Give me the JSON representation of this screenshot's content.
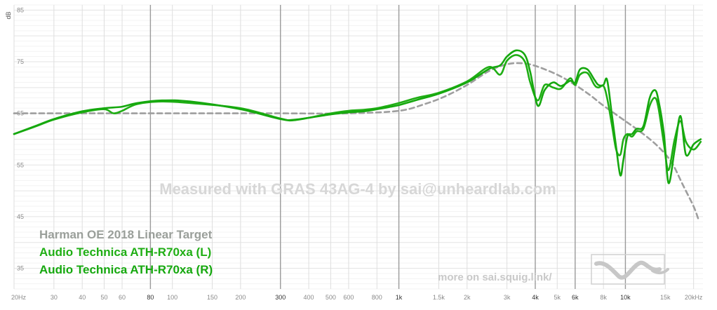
{
  "chart_data": {
    "type": "line",
    "title": "",
    "xlabel": "",
    "ylabel": "dB",
    "xscale": "log",
    "xlim": [
      20,
      22000
    ],
    "ylim": [
      31,
      86
    ],
    "grid": true,
    "y_ticks": [
      "85",
      "75",
      "65",
      "55",
      "45",
      "35"
    ],
    "x_ticks": [
      {
        "f": 20,
        "label": "20Hz",
        "major": false
      },
      {
        "f": 30,
        "label": "30",
        "major": false
      },
      {
        "f": 40,
        "label": "40",
        "major": false
      },
      {
        "f": 50,
        "label": "50",
        "major": false
      },
      {
        "f": 60,
        "label": "60",
        "major": false
      },
      {
        "f": 80,
        "label": "80",
        "major": true
      },
      {
        "f": 100,
        "label": "100",
        "major": false
      },
      {
        "f": 150,
        "label": "150",
        "major": false
      },
      {
        "f": 200,
        "label": "200",
        "major": false
      },
      {
        "f": 300,
        "label": "300",
        "major": true
      },
      {
        "f": 400,
        "label": "400",
        "major": false
      },
      {
        "f": 500,
        "label": "500",
        "major": false
      },
      {
        "f": 600,
        "label": "600",
        "major": false
      },
      {
        "f": 800,
        "label": "800",
        "major": false
      },
      {
        "f": 1000,
        "label": "1k",
        "major": true
      },
      {
        "f": 1500,
        "label": "1.5k",
        "major": false
      },
      {
        "f": 2000,
        "label": "2k",
        "major": false
      },
      {
        "f": 3000,
        "label": "3k",
        "major": false
      },
      {
        "f": 4000,
        "label": "4k",
        "major": true
      },
      {
        "f": 5000,
        "label": "5k",
        "major": false
      },
      {
        "f": 6000,
        "label": "6k",
        "major": true
      },
      {
        "f": 8000,
        "label": "8k",
        "major": false
      },
      {
        "f": 10000,
        "label": "10k",
        "major": true
      },
      {
        "f": 15000,
        "label": "15k",
        "major": false
      },
      {
        "f": 20000,
        "label": "20kHz",
        "major": false
      }
    ],
    "series": [
      {
        "name": "Harman OE 2018 Linear Target",
        "color": "#9e9e9e",
        "dashed": true,
        "points": [
          [
            20,
            65
          ],
          [
            40,
            65
          ],
          [
            80,
            65
          ],
          [
            150,
            65
          ],
          [
            300,
            65
          ],
          [
            600,
            65
          ],
          [
            1000,
            65.5
          ],
          [
            1300,
            66.8
          ],
          [
            1600,
            68.3
          ],
          [
            2000,
            70.5
          ],
          [
            2500,
            73.2
          ],
          [
            3000,
            74.5
          ],
          [
            3500,
            74.7
          ],
          [
            4000,
            74.2
          ],
          [
            5000,
            72.5
          ],
          [
            6000,
            70.5
          ],
          [
            7000,
            68.5
          ],
          [
            8000,
            66.5
          ],
          [
            10000,
            63.5
          ],
          [
            12000,
            61
          ],
          [
            14000,
            58.5
          ],
          [
            16000,
            55.5
          ],
          [
            18000,
            51
          ],
          [
            20000,
            47
          ],
          [
            21000,
            44.5
          ]
        ]
      },
      {
        "name": "Audio Technica ATH-R70xa (L)",
        "color": "#1fae14",
        "dashed": false,
        "points": [
          [
            20,
            61
          ],
          [
            25,
            62.5
          ],
          [
            30,
            63.8
          ],
          [
            40,
            65.2
          ],
          [
            50,
            65.8
          ],
          [
            55,
            65
          ],
          [
            60,
            65.5
          ],
          [
            70,
            66.8
          ],
          [
            90,
            67.3
          ],
          [
            120,
            67
          ],
          [
            200,
            66
          ],
          [
            300,
            64
          ],
          [
            350,
            63.7
          ],
          [
            500,
            65
          ],
          [
            600,
            65.5
          ],
          [
            700,
            65.7
          ],
          [
            800,
            66
          ],
          [
            900,
            66.5
          ],
          [
            1000,
            67
          ],
          [
            1200,
            68
          ],
          [
            1500,
            69
          ],
          [
            2000,
            71.2
          ],
          [
            2500,
            74
          ],
          [
            2800,
            72.5
          ],
          [
            3000,
            75.2
          ],
          [
            3300,
            76.3
          ],
          [
            3600,
            75
          ],
          [
            3800,
            71
          ],
          [
            4100,
            67.5
          ],
          [
            4400,
            70.5
          ],
          [
            4800,
            70
          ],
          [
            5200,
            69.8
          ],
          [
            5700,
            71.8
          ],
          [
            6000,
            70.5
          ],
          [
            6300,
            72.5
          ],
          [
            6800,
            72.8
          ],
          [
            7300,
            70.5
          ],
          [
            7600,
            70
          ],
          [
            8000,
            70.3
          ],
          [
            8300,
            68
          ],
          [
            8700,
            63
          ],
          [
            9100,
            58
          ],
          [
            9500,
            57
          ],
          [
            9800,
            60
          ],
          [
            10200,
            61
          ],
          [
            10700,
            60.5
          ],
          [
            11200,
            61.5
          ],
          [
            12000,
            62
          ],
          [
            12800,
            66.5
          ],
          [
            13500,
            68
          ],
          [
            14000,
            66
          ],
          [
            14800,
            59
          ],
          [
            15500,
            54
          ],
          [
            16500,
            60
          ],
          [
            17500,
            63.5
          ],
          [
            18500,
            59.5
          ],
          [
            20000,
            58
          ],
          [
            21500,
            59.5
          ]
        ]
      },
      {
        "name": "Audio Technica ATH-R70xa (R)",
        "color": "#15a80e",
        "dashed": false,
        "points": [
          [
            20,
            61
          ],
          [
            25,
            62.6
          ],
          [
            30,
            63.9
          ],
          [
            40,
            65.4
          ],
          [
            50,
            66
          ],
          [
            60,
            66.3
          ],
          [
            70,
            67
          ],
          [
            90,
            67.5
          ],
          [
            120,
            67.3
          ],
          [
            200,
            65.8
          ],
          [
            300,
            63.9
          ],
          [
            350,
            63.8
          ],
          [
            500,
            64.8
          ],
          [
            600,
            65.2
          ],
          [
            700,
            65.4
          ],
          [
            800,
            65.8
          ],
          [
            900,
            66.2
          ],
          [
            1000,
            66.6
          ],
          [
            1200,
            67.6
          ],
          [
            1500,
            68.8
          ],
          [
            2000,
            71
          ],
          [
            2500,
            73.6
          ],
          [
            2800,
            74.3
          ],
          [
            3000,
            76
          ],
          [
            3300,
            77.2
          ],
          [
            3600,
            76.3
          ],
          [
            3800,
            73
          ],
          [
            4100,
            66.5
          ],
          [
            4400,
            69.5
          ],
          [
            4800,
            71
          ],
          [
            5200,
            70.3
          ],
          [
            5700,
            71.3
          ],
          [
            6000,
            71
          ],
          [
            6300,
            73.5
          ],
          [
            6800,
            73.5
          ],
          [
            7300,
            71.5
          ],
          [
            7600,
            70.5
          ],
          [
            8000,
            70.5
          ],
          [
            8300,
            71.5
          ],
          [
            8700,
            65
          ],
          [
            9100,
            58.5
          ],
          [
            9500,
            53
          ],
          [
            9800,
            56
          ],
          [
            10200,
            60.5
          ],
          [
            10700,
            61
          ],
          [
            11200,
            62
          ],
          [
            12000,
            62.5
          ],
          [
            12800,
            68
          ],
          [
            13500,
            69.5
          ],
          [
            14000,
            67.5
          ],
          [
            14800,
            61
          ],
          [
            15500,
            51.5
          ],
          [
            16500,
            58
          ],
          [
            17500,
            64.5
          ],
          [
            18500,
            57
          ],
          [
            20000,
            59
          ],
          [
            21500,
            60
          ]
        ]
      }
    ],
    "watermark": "Measured with GRAS 43AG-4 by sai@unheardlab.com",
    "credit": "more on sai.squig.link/"
  }
}
